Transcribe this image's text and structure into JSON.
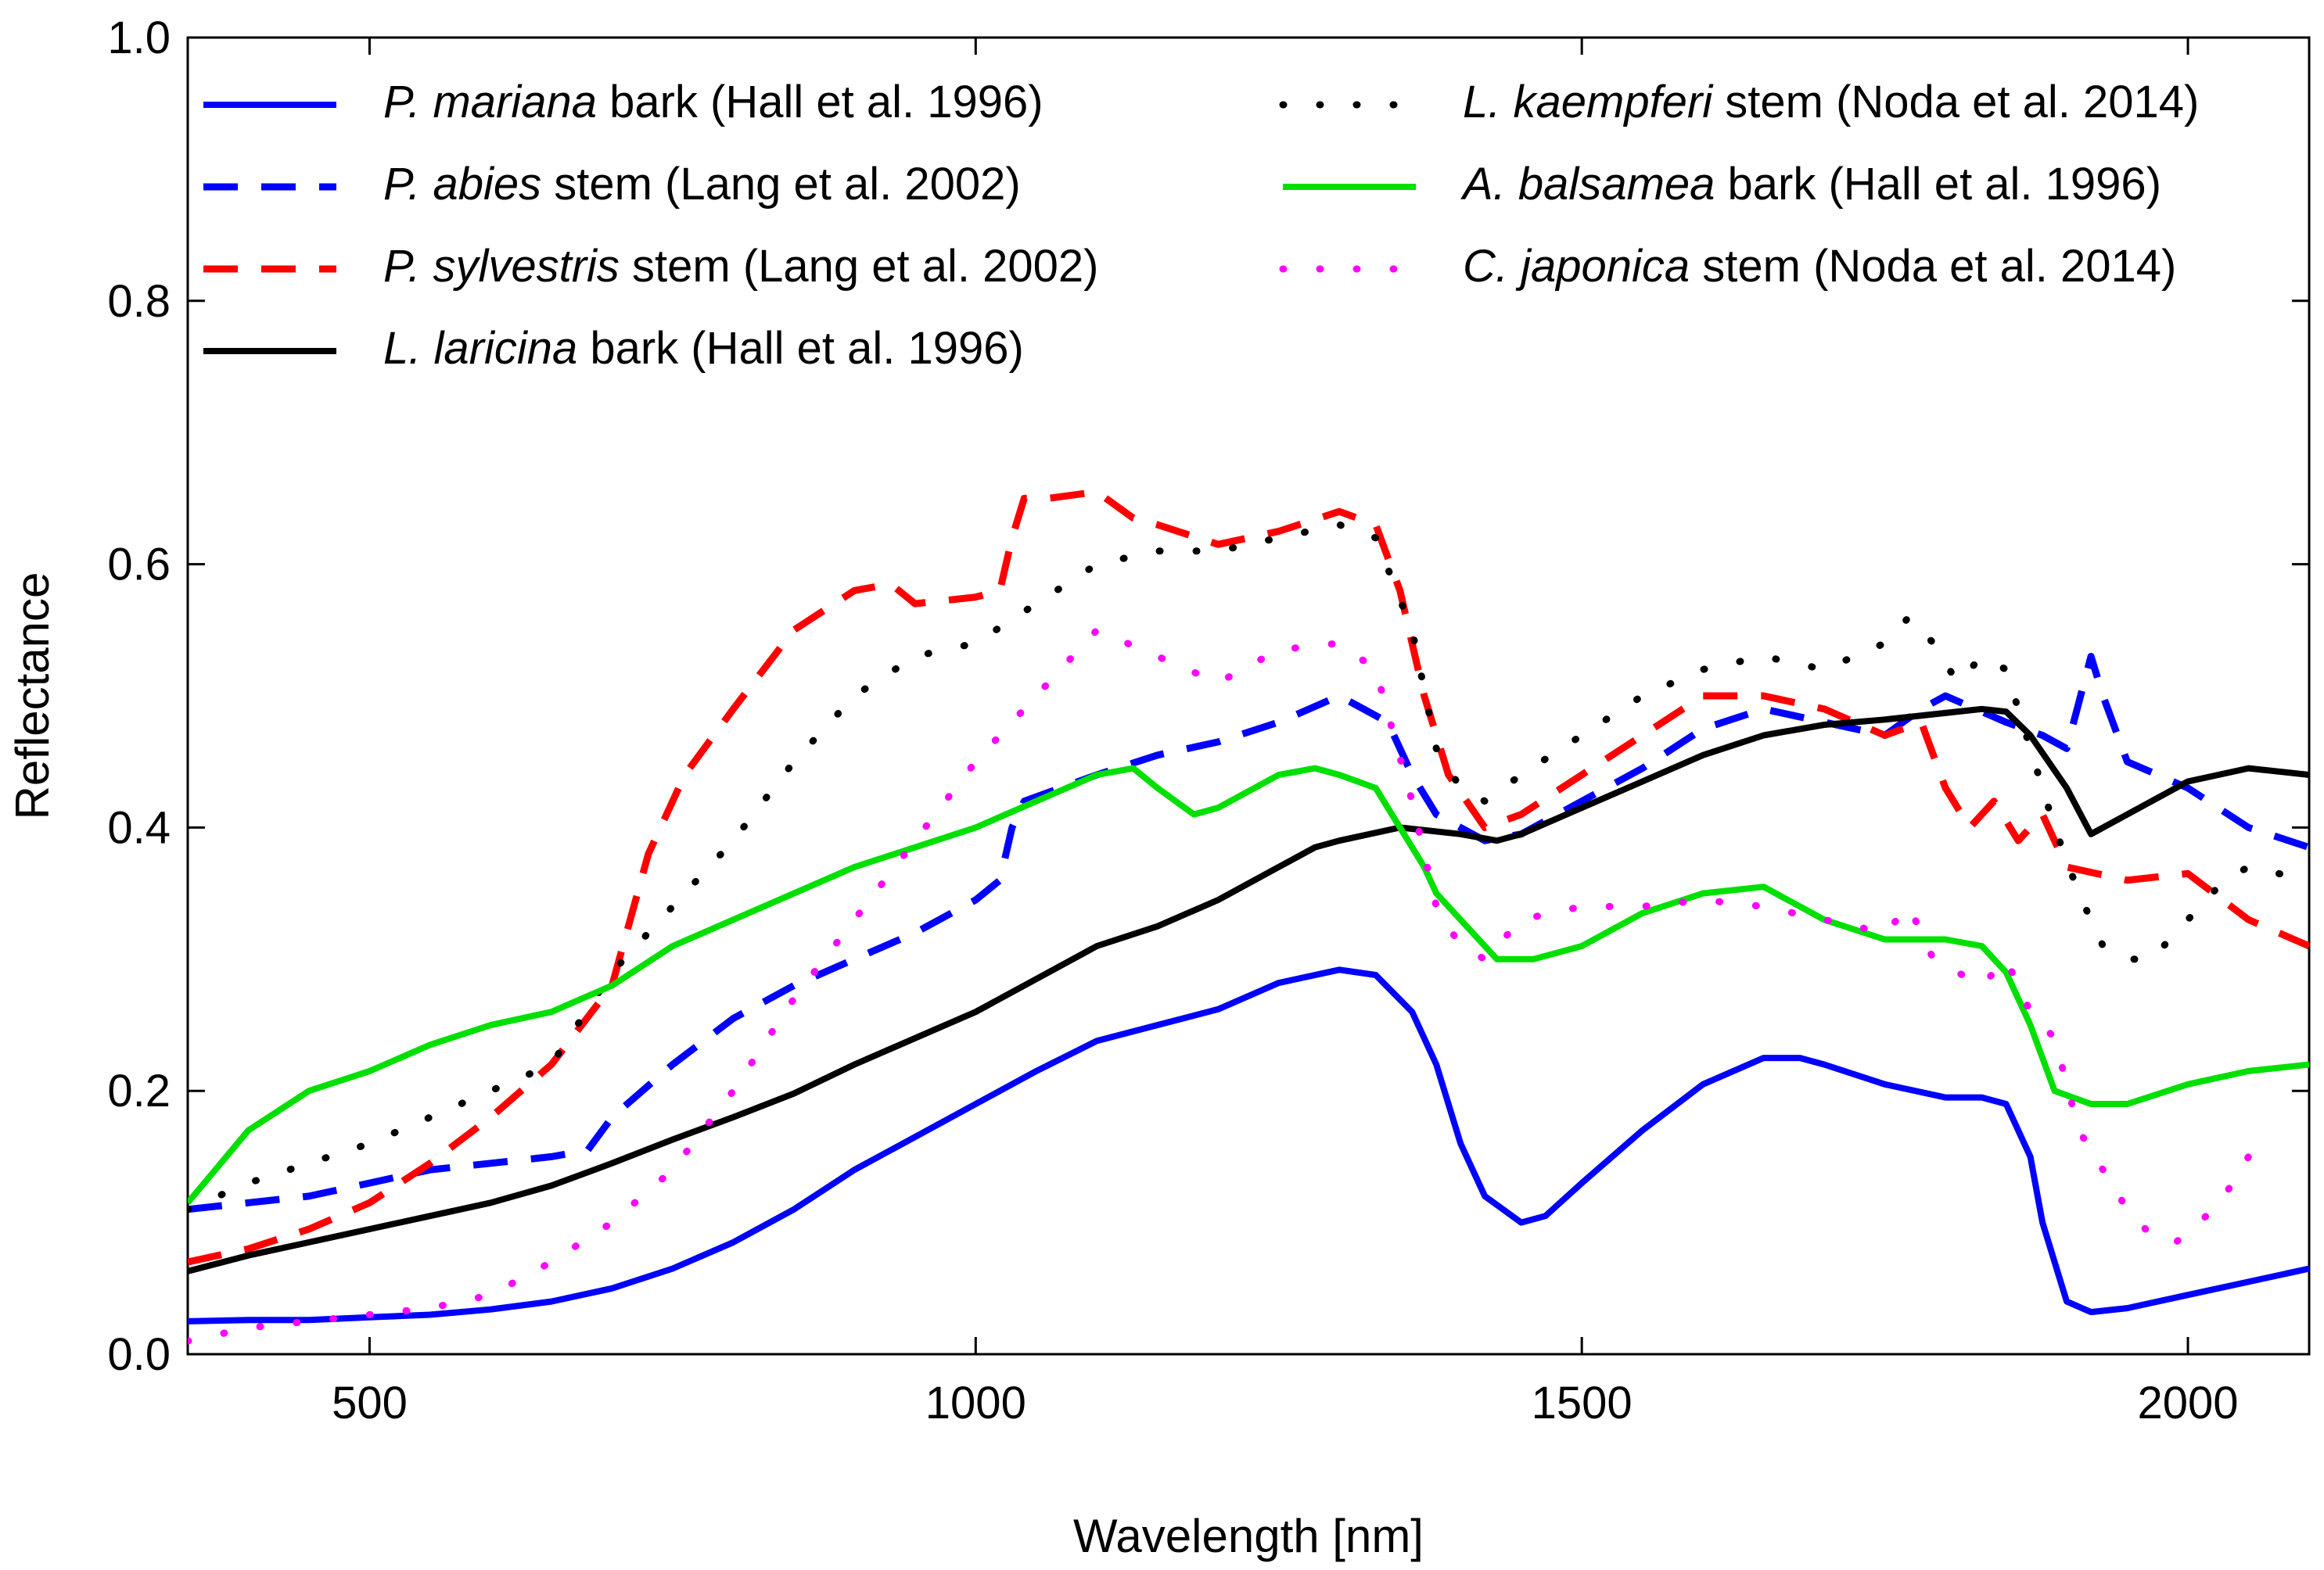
{
  "chart_data": {
    "type": "line",
    "title": "",
    "xlabel": "Wavelength [nm]",
    "ylabel": "Reflectance",
    "xlim": [
      350,
      2100
    ],
    "ylim": [
      0.0,
      1.0
    ],
    "xticks": [
      500,
      1000,
      1500,
      2000
    ],
    "xtick_labels": [
      "500",
      "1000",
      "1500",
      "2000"
    ],
    "yticks": [
      0.0,
      0.2,
      0.4,
      0.6,
      0.8,
      1.0
    ],
    "ytick_labels": [
      "0.0",
      "0.2",
      "0.4",
      "0.6",
      "0.8",
      "1.0"
    ],
    "grid": false,
    "legend_position": "top",
    "series": [
      {
        "name": "P. mariana bark (Hall et al. 1996)",
        "species": "P. mariana",
        "rest": "bark (Hall et al. 1996)",
        "color": "#0000ff",
        "style": "solid",
        "x": [
          350,
          400,
          450,
          500,
          550,
          600,
          650,
          700,
          750,
          800,
          850,
          900,
          950,
          1000,
          1050,
          1100,
          1150,
          1200,
          1250,
          1300,
          1330,
          1360,
          1380,
          1400,
          1420,
          1450,
          1470,
          1500,
          1550,
          1600,
          1650,
          1680,
          1700,
          1750,
          1800,
          1830,
          1850,
          1870,
          1880,
          1900,
          1920,
          1950,
          2000,
          2050,
          2100
        ],
        "y": [
          0.025,
          0.026,
          0.026,
          0.028,
          0.03,
          0.034,
          0.04,
          0.05,
          0.065,
          0.085,
          0.11,
          0.14,
          0.165,
          0.19,
          0.215,
          0.238,
          0.25,
          0.262,
          0.282,
          0.292,
          0.288,
          0.26,
          0.22,
          0.16,
          0.12,
          0.1,
          0.105,
          0.13,
          0.17,
          0.205,
          0.225,
          0.225,
          0.22,
          0.205,
          0.195,
          0.195,
          0.19,
          0.15,
          0.1,
          0.04,
          0.032,
          0.035,
          0.045,
          0.055,
          0.065
        ]
      },
      {
        "name": "P. abies stem (Lang et al. 2002)",
        "species": "P. abies",
        "rest": "stem (Lang et al. 2002)",
        "color": "#0000ff",
        "style": "dashed",
        "x": [
          350,
          400,
          450,
          500,
          550,
          600,
          650,
          680,
          700,
          750,
          800,
          850,
          900,
          950,
          1000,
          1020,
          1030,
          1040,
          1100,
          1150,
          1200,
          1250,
          1300,
          1340,
          1360,
          1380,
          1400,
          1420,
          1450,
          1500,
          1550,
          1600,
          1650,
          1700,
          1750,
          1780,
          1800,
          1850,
          1880,
          1900,
          1920,
          1930,
          1950,
          2000,
          2050,
          2100
        ],
        "y": [
          0.11,
          0.115,
          0.12,
          0.13,
          0.14,
          0.145,
          0.15,
          0.155,
          0.18,
          0.22,
          0.255,
          0.28,
          0.3,
          0.32,
          0.345,
          0.36,
          0.4,
          0.42,
          0.44,
          0.455,
          0.465,
          0.48,
          0.5,
          0.48,
          0.44,
          0.41,
          0.4,
          0.39,
          0.395,
          0.42,
          0.445,
          0.475,
          0.49,
          0.48,
          0.47,
          0.49,
          0.5,
          0.48,
          0.47,
          0.46,
          0.53,
          0.5,
          0.45,
          0.43,
          0.4,
          0.385
        ]
      },
      {
        "name": "P. sylvestris stem (Lang et al. 2002)",
        "species": "P. sylvestris",
        "rest": "stem (Lang et al. 2002)",
        "color": "#ff0000",
        "style": "dashed",
        "x": [
          350,
          400,
          450,
          500,
          550,
          600,
          650,
          700,
          730,
          760,
          800,
          850,
          900,
          930,
          950,
          1000,
          1020,
          1030,
          1040,
          1060,
          1100,
          1130,
          1150,
          1200,
          1250,
          1300,
          1330,
          1350,
          1370,
          1390,
          1420,
          1450,
          1500,
          1550,
          1600,
          1650,
          1700,
          1750,
          1780,
          1800,
          1820,
          1840,
          1860,
          1880,
          1900,
          1950,
          2000,
          2050,
          2100
        ],
        "y": [
          0.07,
          0.08,
          0.095,
          0.115,
          0.145,
          0.18,
          0.22,
          0.28,
          0.38,
          0.44,
          0.49,
          0.55,
          0.58,
          0.585,
          0.57,
          0.575,
          0.58,
          0.62,
          0.65,
          0.65,
          0.655,
          0.635,
          0.63,
          0.615,
          0.625,
          0.64,
          0.63,
          0.58,
          0.5,
          0.44,
          0.4,
          0.41,
          0.44,
          0.47,
          0.5,
          0.5,
          0.49,
          0.47,
          0.48,
          0.43,
          0.4,
          0.42,
          0.39,
          0.41,
          0.37,
          0.36,
          0.365,
          0.33,
          0.31
        ]
      },
      {
        "name": "L. laricina bark (Hall et al. 1996)",
        "species": "L. laricina",
        "rest": "bark (Hall et al. 1996)",
        "color": "#000000",
        "style": "solid",
        "x": [
          350,
          400,
          450,
          500,
          550,
          600,
          650,
          700,
          750,
          800,
          850,
          900,
          950,
          1000,
          1050,
          1100,
          1150,
          1200,
          1250,
          1280,
          1300,
          1350,
          1400,
          1430,
          1450,
          1500,
          1550,
          1600,
          1650,
          1700,
          1750,
          1800,
          1830,
          1850,
          1870,
          1900,
          1920,
          1950,
          2000,
          2050,
          2100
        ],
        "y": [
          0.063,
          0.075,
          0.085,
          0.095,
          0.105,
          0.115,
          0.128,
          0.145,
          0.163,
          0.18,
          0.198,
          0.22,
          0.24,
          0.26,
          0.285,
          0.31,
          0.325,
          0.345,
          0.37,
          0.385,
          0.39,
          0.4,
          0.395,
          0.39,
          0.395,
          0.415,
          0.435,
          0.455,
          0.47,
          0.478,
          0.482,
          0.487,
          0.49,
          0.488,
          0.47,
          0.43,
          0.395,
          0.41,
          0.435,
          0.445,
          0.44
        ]
      },
      {
        "name": "L. kaempferi stem (Noda et al. 2014)",
        "species": "L. kaempferi",
        "rest": "stem (Noda et al. 2014)",
        "color": "#000000",
        "style": "dotted",
        "x": [
          350,
          400,
          450,
          500,
          550,
          600,
          650,
          700,
          750,
          800,
          850,
          900,
          950,
          1000,
          1050,
          1100,
          1150,
          1200,
          1250,
          1300,
          1330,
          1360,
          1380,
          1400,
          1420,
          1450,
          1500,
          1550,
          1600,
          1650,
          1700,
          1750,
          1770,
          1790,
          1810,
          1830,
          1850,
          1870,
          1890,
          1910,
          1930,
          1950,
          1970,
          1990,
          2010,
          2030,
          2050,
          2100
        ],
        "y": [
          0.11,
          0.13,
          0.145,
          0.16,
          0.18,
          0.2,
          0.22,
          0.29,
          0.34,
          0.39,
          0.45,
          0.5,
          0.53,
          0.54,
          0.57,
          0.6,
          0.61,
          0.61,
          0.62,
          0.63,
          0.62,
          0.55,
          0.46,
          0.43,
          0.42,
          0.44,
          0.47,
          0.5,
          0.52,
          0.53,
          0.52,
          0.54,
          0.56,
          0.54,
          0.51,
          0.53,
          0.52,
          0.46,
          0.4,
          0.35,
          0.31,
          0.3,
          0.3,
          0.32,
          0.34,
          0.36,
          0.37,
          0.36
        ]
      },
      {
        "name": "A. balsamea bark (Hall et al. 1996)",
        "species": "A. balsamea",
        "rest": "bark (Hall et al. 1996)",
        "color": "#00e000",
        "style": "solid",
        "x": [
          350,
          400,
          450,
          500,
          550,
          600,
          650,
          700,
          750,
          800,
          850,
          900,
          950,
          1000,
          1050,
          1100,
          1130,
          1150,
          1180,
          1200,
          1250,
          1280,
          1300,
          1330,
          1350,
          1370,
          1380,
          1400,
          1430,
          1460,
          1500,
          1550,
          1600,
          1650,
          1700,
          1750,
          1800,
          1830,
          1850,
          1870,
          1890,
          1920,
          1950,
          2000,
          2050,
          2100
        ],
        "y": [
          0.115,
          0.17,
          0.2,
          0.215,
          0.235,
          0.25,
          0.26,
          0.28,
          0.31,
          0.33,
          0.35,
          0.37,
          0.385,
          0.4,
          0.42,
          0.44,
          0.445,
          0.43,
          0.41,
          0.415,
          0.44,
          0.445,
          0.44,
          0.43,
          0.4,
          0.37,
          0.35,
          0.33,
          0.3,
          0.3,
          0.31,
          0.335,
          0.35,
          0.355,
          0.33,
          0.315,
          0.315,
          0.31,
          0.29,
          0.25,
          0.2,
          0.19,
          0.19,
          0.205,
          0.215,
          0.22
        ]
      },
      {
        "name": "C. japonica stem (Noda et al. 2014)",
        "species": "C. japonica",
        "rest": "stem (Noda et al. 2014)",
        "color": "#ff00ff",
        "style": "dotted",
        "x": [
          350,
          400,
          450,
          500,
          550,
          600,
          650,
          700,
          750,
          800,
          850,
          900,
          950,
          1000,
          1050,
          1100,
          1150,
          1200,
          1250,
          1300,
          1330,
          1360,
          1380,
          1400,
          1420,
          1450,
          1500,
          1550,
          1600,
          1650,
          1700,
          1750,
          1770,
          1790,
          1810,
          1830,
          1850,
          1870,
          1890,
          1910,
          1930,
          1950,
          1970,
          1990,
          2010,
          2030,
          2050
        ],
        "y": [
          0.01,
          0.02,
          0.025,
          0.03,
          0.035,
          0.045,
          0.07,
          0.1,
          0.14,
          0.2,
          0.27,
          0.33,
          0.39,
          0.45,
          0.5,
          0.55,
          0.53,
          0.51,
          0.535,
          0.54,
          0.52,
          0.42,
          0.34,
          0.31,
          0.3,
          0.33,
          0.34,
          0.34,
          0.345,
          0.34,
          0.33,
          0.32,
          0.34,
          0.3,
          0.29,
          0.28,
          0.3,
          0.26,
          0.24,
          0.17,
          0.14,
          0.11,
          0.09,
          0.085,
          0.1,
          0.12,
          0.15
        ]
      }
    ]
  }
}
